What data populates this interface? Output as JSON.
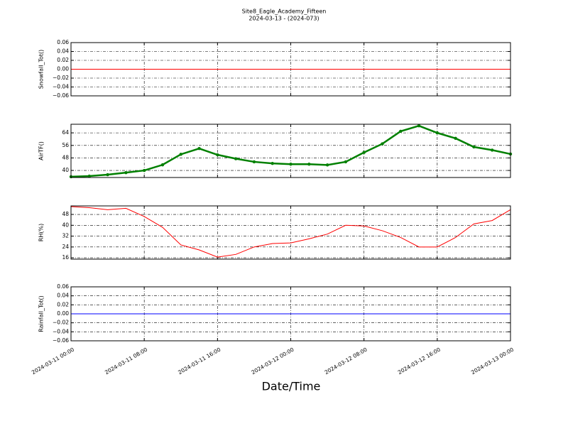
{
  "header": {
    "title": "Site8_Eagle_Academy_Fifteen",
    "subtitle": "2024-03-13 - (2024-073)"
  },
  "x_axis": {
    "label": "Date/Time",
    "xlim": [
      "2024-03-11 00:00",
      "2024-03-13 00:00"
    ],
    "xticks": [
      "2024-03-11 00:00",
      "2024-03-11 08:00",
      "2024-03-11 16:00",
      "2024-03-12 00:00",
      "2024-03-12 08:00",
      "2024-03-12 16:00",
      "2024-03-13 00:00"
    ]
  },
  "chart_data": [
    {
      "type": "line",
      "ylabel": "Snowfall_Tot()",
      "color": "#ff0000",
      "marker": false,
      "x": [
        "2024-03-11 00:00",
        "2024-03-13 00:00"
      ],
      "values": [
        0,
        0
      ],
      "ylim": [
        -0.06,
        0.06
      ],
      "grid": true,
      "yticks": [
        0.06,
        0.04,
        0.02,
        {
          "value": 0,
          "label": "0.00"
        },
        {
          "value": -0.02,
          "label": "−0.02"
        },
        {
          "value": -0.04,
          "label": "−0.04"
        },
        {
          "value": -0.06,
          "label": "−0.06"
        }
      ]
    },
    {
      "type": "line",
      "ylabel": "AirTF()",
      "color": "#008000",
      "marker": true,
      "x": [
        "2024-03-11 00:00",
        "2024-03-11 02:00",
        "2024-03-11 04:00",
        "2024-03-11 06:00",
        "2024-03-11 08:00",
        "2024-03-11 10:00",
        "2024-03-11 12:00",
        "2024-03-11 14:00",
        "2024-03-11 16:00",
        "2024-03-11 18:00",
        "2024-03-11 20:00",
        "2024-03-11 22:00",
        "2024-03-12 00:00",
        "2024-03-12 02:00",
        "2024-03-12 04:00",
        "2024-03-12 06:00",
        "2024-03-12 08:00",
        "2024-03-12 10:00",
        "2024-03-12 12:00",
        "2024-03-12 14:00",
        "2024-03-12 16:00",
        "2024-03-12 18:00",
        "2024-03-12 20:00",
        "2024-03-12 22:00",
        "2024-03-13 00:00"
      ],
      "values": [
        36,
        36.4,
        37.3,
        38.6,
        40,
        43.6,
        50.3,
        54,
        50,
        47.5,
        45.5,
        44.5,
        44,
        44,
        43.5,
        45.5,
        51.5,
        57,
        65,
        68.5,
        64,
        60.5,
        55,
        53,
        50.5
      ],
      "ylim": [
        35.5,
        69.5
      ],
      "grid": true,
      "yticks": [
        40,
        48,
        56,
        64
      ]
    },
    {
      "type": "line",
      "ylabel": "RH(%)",
      "color": "#ff0000",
      "marker": false,
      "x": [
        "2024-03-11 00:00",
        "2024-03-11 02:00",
        "2024-03-11 04:00",
        "2024-03-11 06:00",
        "2024-03-11 08:00",
        "2024-03-11 10:00",
        "2024-03-11 12:00",
        "2024-03-11 14:00",
        "2024-03-11 16:00",
        "2024-03-11 18:00",
        "2024-03-11 20:00",
        "2024-03-11 22:00",
        "2024-03-12 00:00",
        "2024-03-12 02:00",
        "2024-03-12 04:00",
        "2024-03-12 06:00",
        "2024-03-12 08:00",
        "2024-03-12 10:00",
        "2024-03-12 12:00",
        "2024-03-12 14:00",
        "2024-03-12 16:00",
        "2024-03-12 18:00",
        "2024-03-12 20:00",
        "2024-03-12 22:00",
        "2024-03-13 00:00"
      ],
      "values": [
        53.8,
        53,
        51.5,
        52.5,
        46.5,
        38.5,
        25.5,
        21.8,
        16.5,
        18.5,
        24,
        26.5,
        27,
        30,
        33.5,
        40,
        39.5,
        36,
        31,
        24,
        24,
        31,
        41,
        43.5,
        51.5
      ],
      "ylim": [
        15,
        54.3
      ],
      "grid": true,
      "yticks": [
        16,
        24,
        32,
        40,
        48
      ]
    },
    {
      "type": "line",
      "ylabel": "Rainfall_Tot()",
      "color": "#0000ff",
      "marker": false,
      "x": [
        "2024-03-11 00:00",
        "2024-03-13 00:00"
      ],
      "values": [
        0,
        0
      ],
      "ylim": [
        -0.06,
        0.06
      ],
      "grid": true,
      "yticks": [
        0.06,
        0.04,
        0.02,
        {
          "value": 0,
          "label": "0.00"
        },
        {
          "value": -0.02,
          "label": "−0.02"
        },
        {
          "value": -0.04,
          "label": "−0.04"
        },
        {
          "value": -0.06,
          "label": "−0.06"
        }
      ]
    }
  ]
}
